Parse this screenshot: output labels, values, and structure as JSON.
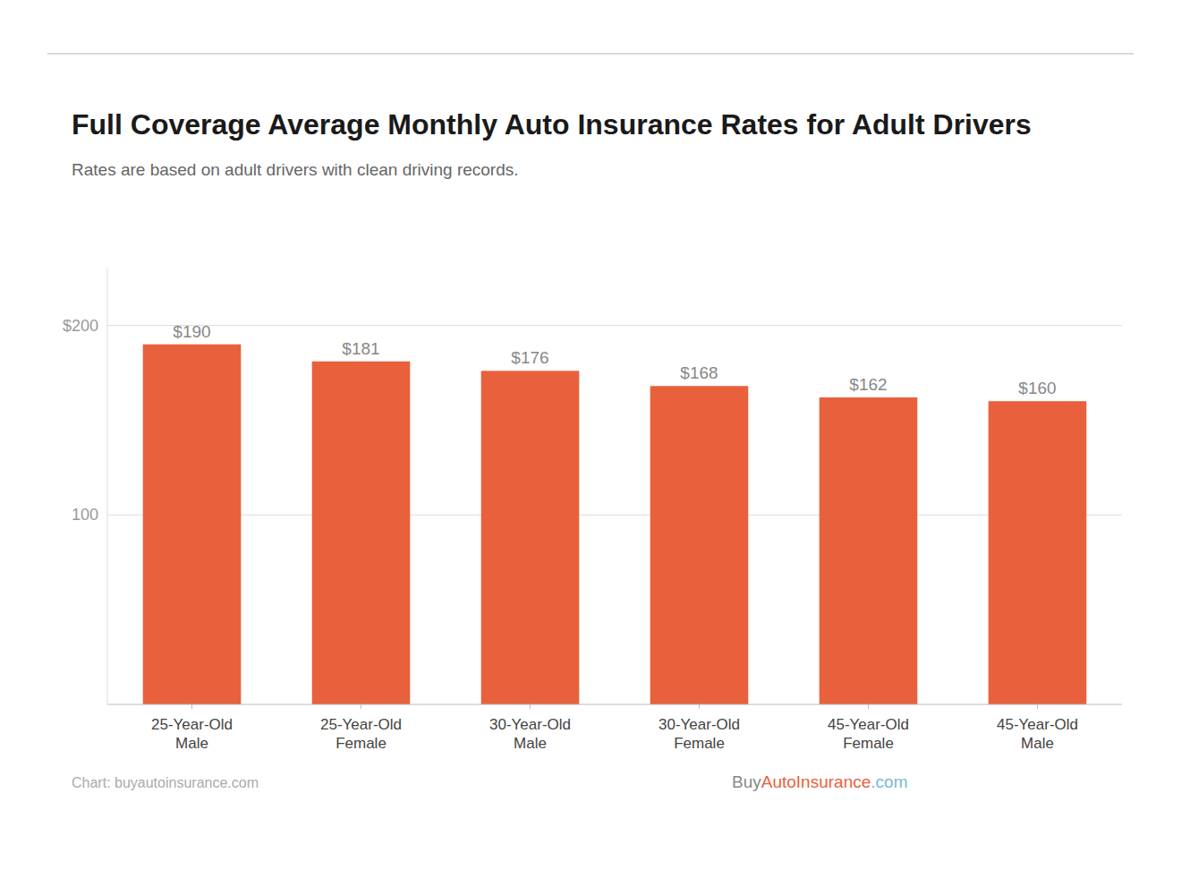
{
  "chart_data": {
    "type": "bar",
    "title": "Full Coverage Average Monthly Auto Insurance Rates for Adult Drivers",
    "subtitle": "Rates are based on adult drivers with clean driving records.",
    "categories": [
      "25-Year-Old\nMale",
      "25-Year-Old\nFemale",
      "30-Year-Old\nMale",
      "30-Year-Old\nFemale",
      "45-Year-Old\nFemale",
      "45-Year-Old\nMale"
    ],
    "values": [
      190,
      181,
      176,
      168,
      162,
      160
    ],
    "value_labels": [
      "$190",
      "$181",
      "$176",
      "$168",
      "$162",
      "$160"
    ],
    "data_labels": true,
    "color": "#E8613C",
    "ylim": [
      0,
      230
    ],
    "yticks": [
      100,
      {
        "value": 200,
        "label": "$200"
      }
    ],
    "grid": true,
    "source": "Chart: buyautoinsurance.com",
    "watermark": [
      {
        "text": "Buy",
        "color": "#888888"
      },
      {
        "text": "AutoInsurance",
        "color": "#E8613C"
      },
      {
        "text": ".com",
        "color": "#7ab8d4"
      }
    ]
  }
}
